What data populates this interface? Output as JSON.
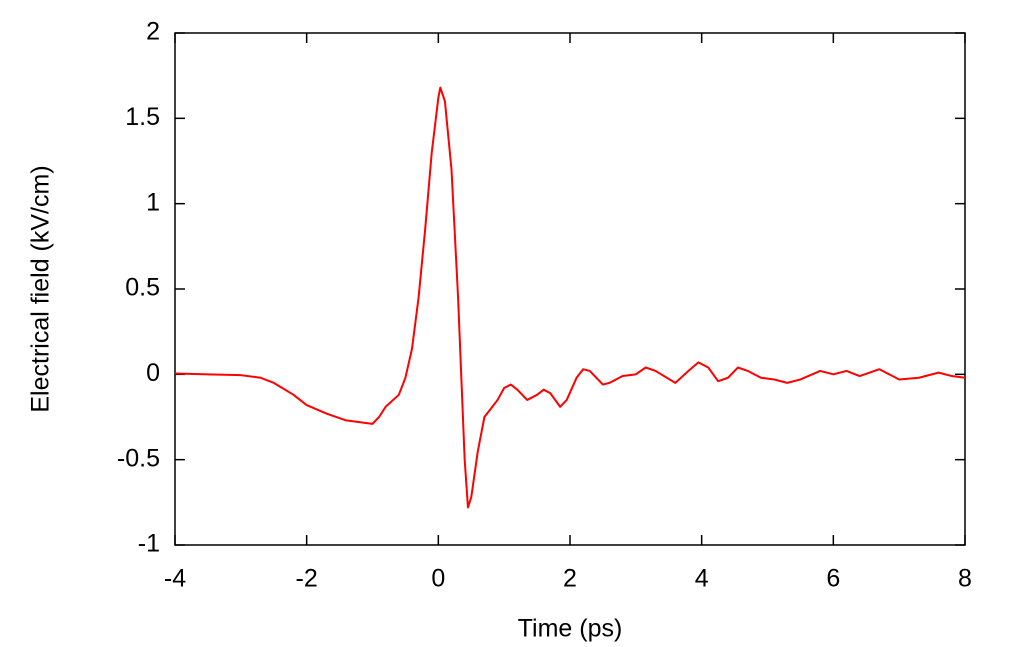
{
  "chart_data": {
    "type": "line",
    "x_label": "Time (ps)",
    "y_label": "Electrical field (kV/cm)",
    "x": [
      -4,
      -3.5,
      -3,
      -2.7,
      -2.5,
      -2.2,
      -2,
      -1.7,
      -1.4,
      -1.2,
      -1,
      -0.9,
      -0.8,
      -0.6,
      -0.5,
      -0.4,
      -0.3,
      -0.2,
      -0.1,
      0,
      0.03,
      0.1,
      0.2,
      0.3,
      0.4,
      0.45,
      0.5,
      0.6,
      0.7,
      0.8,
      0.9,
      1,
      1.1,
      1.2,
      1.35,
      1.5,
      1.6,
      1.7,
      1.85,
      1.95,
      2.1,
      2.2,
      2.3,
      2.5,
      2.6,
      2.8,
      3,
      3.15,
      3.3,
      3.6,
      3.8,
      3.95,
      4.1,
      4.25,
      4.4,
      4.55,
      4.7,
      4.9,
      5.1,
      5.3,
      5.5,
      5.8,
      6,
      6.2,
      6.4,
      6.7,
      6.85,
      7,
      7.3,
      7.6,
      7.8,
      8
    ],
    "series": [
      {
        "color": "#ff0000",
        "values": [
          0.005,
          0,
          -0.005,
          -0.02,
          -0.05,
          -0.12,
          -0.18,
          -0.23,
          -0.27,
          -0.28,
          -0.29,
          -0.25,
          -0.19,
          -0.12,
          -0.02,
          0.15,
          0.45,
          0.85,
          1.3,
          1.62,
          1.68,
          1.6,
          1.2,
          0.45,
          -0.5,
          -0.78,
          -0.72,
          -0.45,
          -0.25,
          -0.2,
          -0.15,
          -0.08,
          -0.06,
          -0.09,
          -0.15,
          -0.12,
          -0.09,
          -0.11,
          -0.19,
          -0.15,
          -0.02,
          0.03,
          0.02,
          -0.06,
          -0.05,
          -0.01,
          0,
          0.04,
          0.02,
          -0.05,
          0.02,
          0.07,
          0.04,
          -0.04,
          -0.02,
          0.04,
          0.02,
          -0.02,
          -0.03,
          -0.05,
          -0.03,
          0.02,
          0,
          0.02,
          -0.01,
          0.03,
          0,
          -0.03,
          -0.02,
          0.01,
          -0.01,
          -0.02
        ]
      }
    ],
    "xlim": [
      -4,
      8
    ],
    "xticks": [
      -4,
      -2,
      0,
      2,
      4,
      6,
      8
    ],
    "ylim": [
      -1,
      2
    ],
    "yticks": [
      -1,
      -0.5,
      0,
      0.5,
      1,
      1.5,
      2
    ],
    "grid": false
  }
}
